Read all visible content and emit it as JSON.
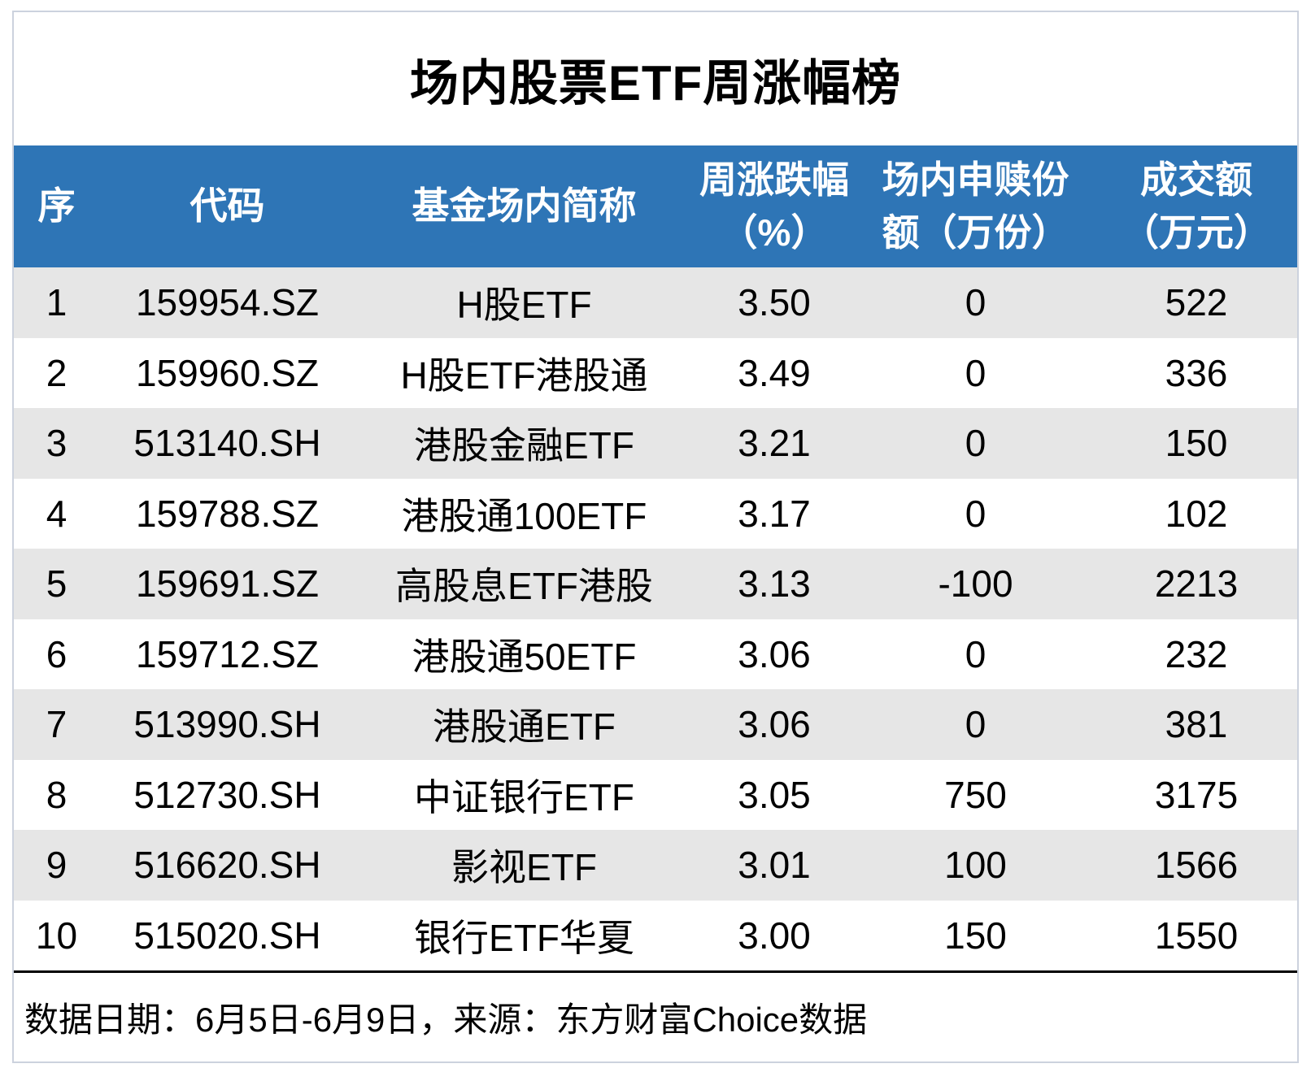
{
  "title": "场内股票ETF周涨幅榜",
  "colors": {
    "header_bg": "#2E75B6",
    "header_text": "#FFFFFF",
    "row_stripe_bg": "#E6E6E6",
    "row_plain_bg": "#FFFFFF",
    "divider": "#000000",
    "card_border": "#CCD2DE"
  },
  "header": {
    "labels": {
      "rank": "序",
      "code": "代码",
      "name": "基金场内简称",
      "change": "周涨跌幅\n（%）",
      "shares": "场内申赎份\n额（万份）",
      "turnover": "成交额\n（万元）"
    }
  },
  "rows": [
    {
      "rank": "1",
      "code": "159954.SZ",
      "name": "H股ETF",
      "change": "3.50",
      "shares": "0",
      "turnover": "522"
    },
    {
      "rank": "2",
      "code": "159960.SZ",
      "name": "H股ETF港股通",
      "change": "3.49",
      "shares": "0",
      "turnover": "336"
    },
    {
      "rank": "3",
      "code": "513140.SH",
      "name": "港股金融ETF",
      "change": "3.21",
      "shares": "0",
      "turnover": "150"
    },
    {
      "rank": "4",
      "code": "159788.SZ",
      "name": "港股通100ETF",
      "change": "3.17",
      "shares": "0",
      "turnover": "102"
    },
    {
      "rank": "5",
      "code": "159691.SZ",
      "name": "高股息ETF港股",
      "change": "3.13",
      "shares": "-100",
      "turnover": "2213"
    },
    {
      "rank": "6",
      "code": "159712.SZ",
      "name": "港股通50ETF",
      "change": "3.06",
      "shares": "0",
      "turnover": "232"
    },
    {
      "rank": "7",
      "code": "513990.SH",
      "name": "港股通ETF",
      "change": "3.06",
      "shares": "0",
      "turnover": "381"
    },
    {
      "rank": "8",
      "code": "512730.SH",
      "name": "中证银行ETF",
      "change": "3.05",
      "shares": "750",
      "turnover": "3175"
    },
    {
      "rank": "9",
      "code": "516620.SH",
      "name": "影视ETF",
      "change": "3.01",
      "shares": "100",
      "turnover": "1566"
    },
    {
      "rank": "10",
      "code": "515020.SH",
      "name": "银行ETF华夏",
      "change": "3.00",
      "shares": "150",
      "turnover": "1550"
    }
  ],
  "footer": {
    "text": "数据日期：6月5日-6月9日，来源：东方财富Choice数据"
  },
  "chart_data": {
    "type": "table",
    "title": "场内股票ETF周涨幅榜",
    "columns": [
      "序",
      "代码",
      "基金场内简称",
      "周涨跌幅（%）",
      "场内申赎份额（万份）",
      "成交额（万元）"
    ],
    "rows": [
      [
        1,
        "159954.SZ",
        "H股ETF",
        3.5,
        0,
        522
      ],
      [
        2,
        "159960.SZ",
        "H股ETF港股通",
        3.49,
        0,
        336
      ],
      [
        3,
        "513140.SH",
        "港股金融ETF",
        3.21,
        0,
        150
      ],
      [
        4,
        "159788.SZ",
        "港股通100ETF",
        3.17,
        0,
        102
      ],
      [
        5,
        "159691.SZ",
        "高股息ETF港股",
        3.13,
        -100,
        2213
      ],
      [
        6,
        "159712.SZ",
        "港股通50ETF",
        3.06,
        0,
        232
      ],
      [
        7,
        "513990.SH",
        "港股通ETF",
        3.06,
        0,
        381
      ],
      [
        8,
        "512730.SH",
        "中证银行ETF",
        3.05,
        750,
        3175
      ],
      [
        9,
        "516620.SH",
        "影视ETF",
        3.01,
        100,
        1566
      ],
      [
        10,
        "515020.SH",
        "银行ETF华夏",
        3.0,
        150,
        1550
      ]
    ],
    "footnote": "数据日期：6月5日-6月9日，来源：东方财富Choice数据",
    "layout_hints": {
      "stripe_rows": "odd",
      "header_style": "blue-band",
      "value_alignment": "center"
    }
  }
}
